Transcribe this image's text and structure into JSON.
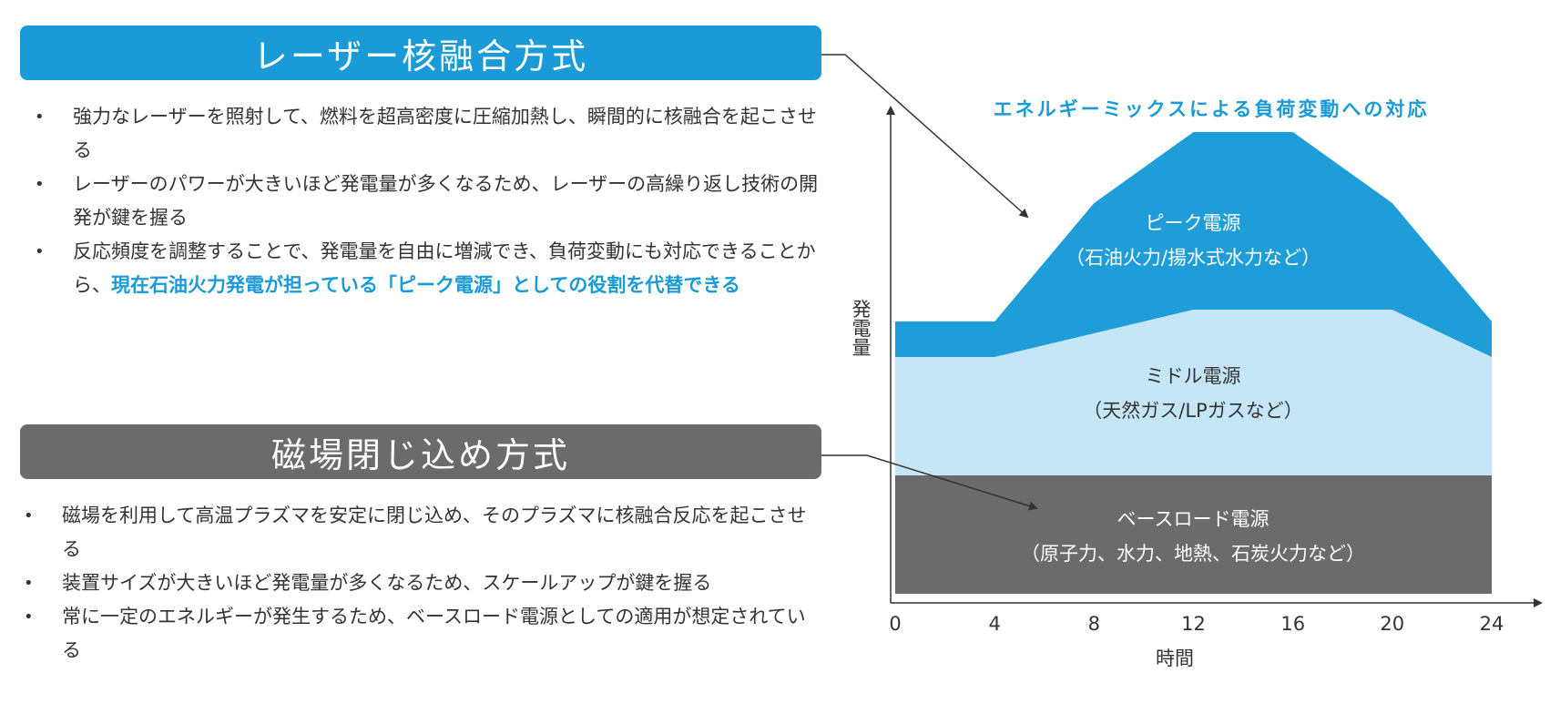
{
  "laser": {
    "title": "レーザー核融合方式",
    "bullets": [
      {
        "text": "強力なレーザーを照射して、燃料を超高密度に圧縮加熱し、瞬間的に核融合を起こさせる",
        "highlight": ""
      },
      {
        "text": "レーザーのパワーが大きいほど発電量が多くなるため、レーザーの高繰り返し技術の開発が鍵を握る",
        "highlight": ""
      },
      {
        "text": "反応頻度を調整することで、発電量を自由に増減でき、負荷変動にも対応できることから、",
        "highlight": "現在石油火力発電が担っている「ピーク電源」としての役割を代替できる"
      }
    ]
  },
  "magnetic": {
    "title": "磁場閉じ込め方式",
    "bullets": [
      {
        "text": "磁場を利用して高温プラズマを安定に閉じ込め、そのプラズマに核融合反応を起こさせる"
      },
      {
        "text": "装置サイズが大きいほど発電量が多くなるため、スケールアップが鍵を握る"
      },
      {
        "text": "常に一定のエネルギーが発生するため、ベースロード電源としての適用が想定されている"
      }
    ]
  },
  "chart_data": {
    "type": "area",
    "title": "エネルギーミックスによる負荷変動への対応",
    "xlabel": "時間",
    "ylabel": "発電量",
    "x_ticks": [
      0,
      4,
      8,
      12,
      16,
      20,
      24
    ],
    "xlim": [
      0,
      24
    ],
    "series": [
      {
        "name": "ベースロード電源",
        "sublabel": "（原子力、水力、地熱、石炭火力など）",
        "color": "#6B6B6B",
        "points": [
          [
            0,
            100
          ],
          [
            24,
            100
          ]
        ]
      },
      {
        "name": "ミドル電源",
        "sublabel": "（天然ガス/LPガスなど）",
        "color": "#C5E6F7",
        "points": [
          [
            0,
            100
          ],
          [
            4,
            100
          ],
          [
            8,
            120
          ],
          [
            12,
            140
          ],
          [
            16,
            140
          ],
          [
            20,
            140
          ],
          [
            24,
            100
          ]
        ]
      },
      {
        "name": "ピーク電源",
        "sublabel": "（石油火力/揚水式水力など）",
        "color": "#1E9DD8",
        "points": [
          [
            0,
            30
          ],
          [
            4,
            30
          ],
          [
            8,
            110
          ],
          [
            12,
            150
          ],
          [
            16,
            150
          ],
          [
            20,
            90
          ],
          [
            24,
            30
          ]
        ]
      }
    ]
  },
  "colors": {
    "accent": "#1A9AD6",
    "gray": "#6B6B6B",
    "text": "#333333"
  }
}
